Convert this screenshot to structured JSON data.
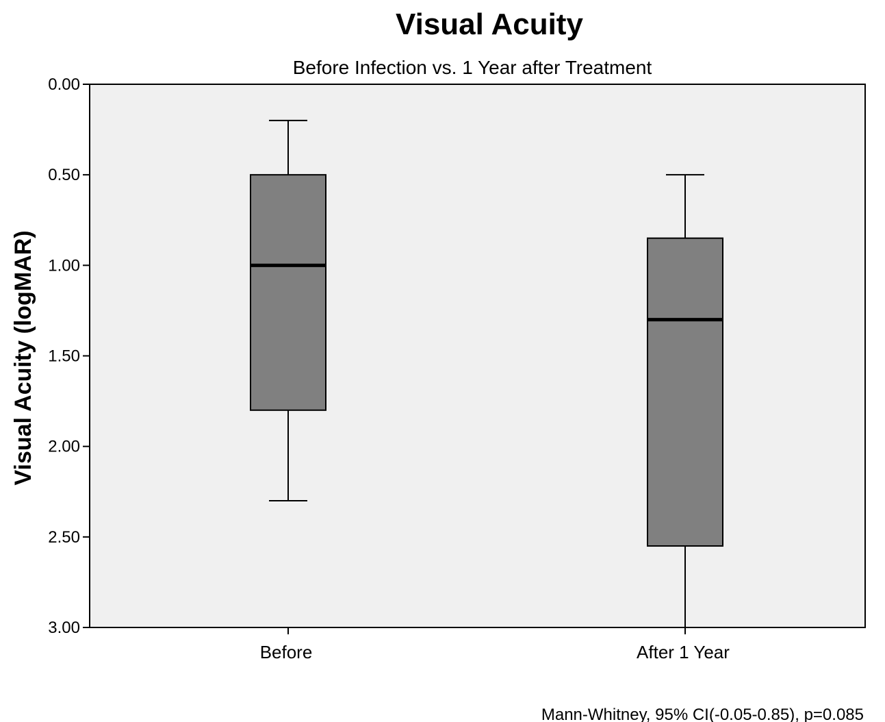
{
  "chart_data": {
    "type": "boxplot",
    "title": "Visual Acuity",
    "subtitle": "Before Infection vs. 1 Year after Treatment",
    "xlabel": "",
    "ylabel": "Visual Acuity (logMAR)",
    "ylim": [
      0,
      3
    ],
    "y_inverted": true,
    "y_ticks": [
      "0.00",
      "0.50",
      "1.00",
      "1.50",
      "2.00",
      "2.50",
      "3.00"
    ],
    "y_tick_values": [
      0,
      0.5,
      1,
      1.5,
      2,
      2.5,
      3
    ],
    "categories": [
      "Before",
      "After 1 Year"
    ],
    "boxes": [
      {
        "category": "Before",
        "whisker_low": 0.2,
        "q1": 0.5,
        "median": 1.0,
        "q3": 1.8,
        "whisker_high": 2.3
      },
      {
        "category": "After 1 Year",
        "whisker_low": 0.5,
        "q1": 0.85,
        "median": 1.3,
        "q3": 2.55,
        "whisker_high": 3.0
      }
    ],
    "grid": false,
    "annotation": "Mann-Whitney, 95% CI(-0.05-0.85), p=0.085",
    "colors": {
      "plot_background": "#f0f0f0",
      "box_fill": "#808080",
      "line": "#000000"
    }
  }
}
